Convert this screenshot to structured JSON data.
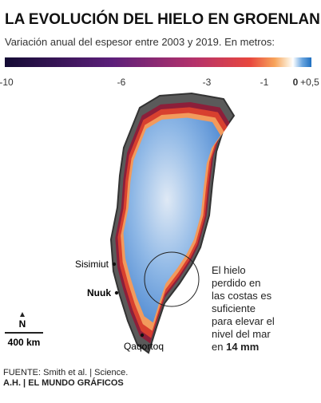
{
  "header": {
    "title": "LA EVOLUCIÓN DEL HIELO EN GROENLANDIA",
    "subtitle": "Variación anual del espesor entre 2003 y 2019. En metros:"
  },
  "legend": {
    "ticks": [
      "-10",
      "-6",
      "-3",
      "-1",
      "0",
      "+0,5"
    ]
  },
  "map": {
    "places": [
      "Sisimiut",
      "Nuuk",
      "Qaqortoq"
    ],
    "north": "N",
    "scale": "400 km",
    "annotation": {
      "lines": [
        "El hielo",
        "perdido en",
        "las costas es",
        "suficiente",
        "para elevar el",
        "nivel del mar"
      ],
      "last_prefix": "en",
      "highlight": "14 mm"
    }
  },
  "footer": {
    "source": "FUENTE: Smith et al. | Science.",
    "credit": "A.H. | EL MUNDO GRÁFICOS"
  }
}
